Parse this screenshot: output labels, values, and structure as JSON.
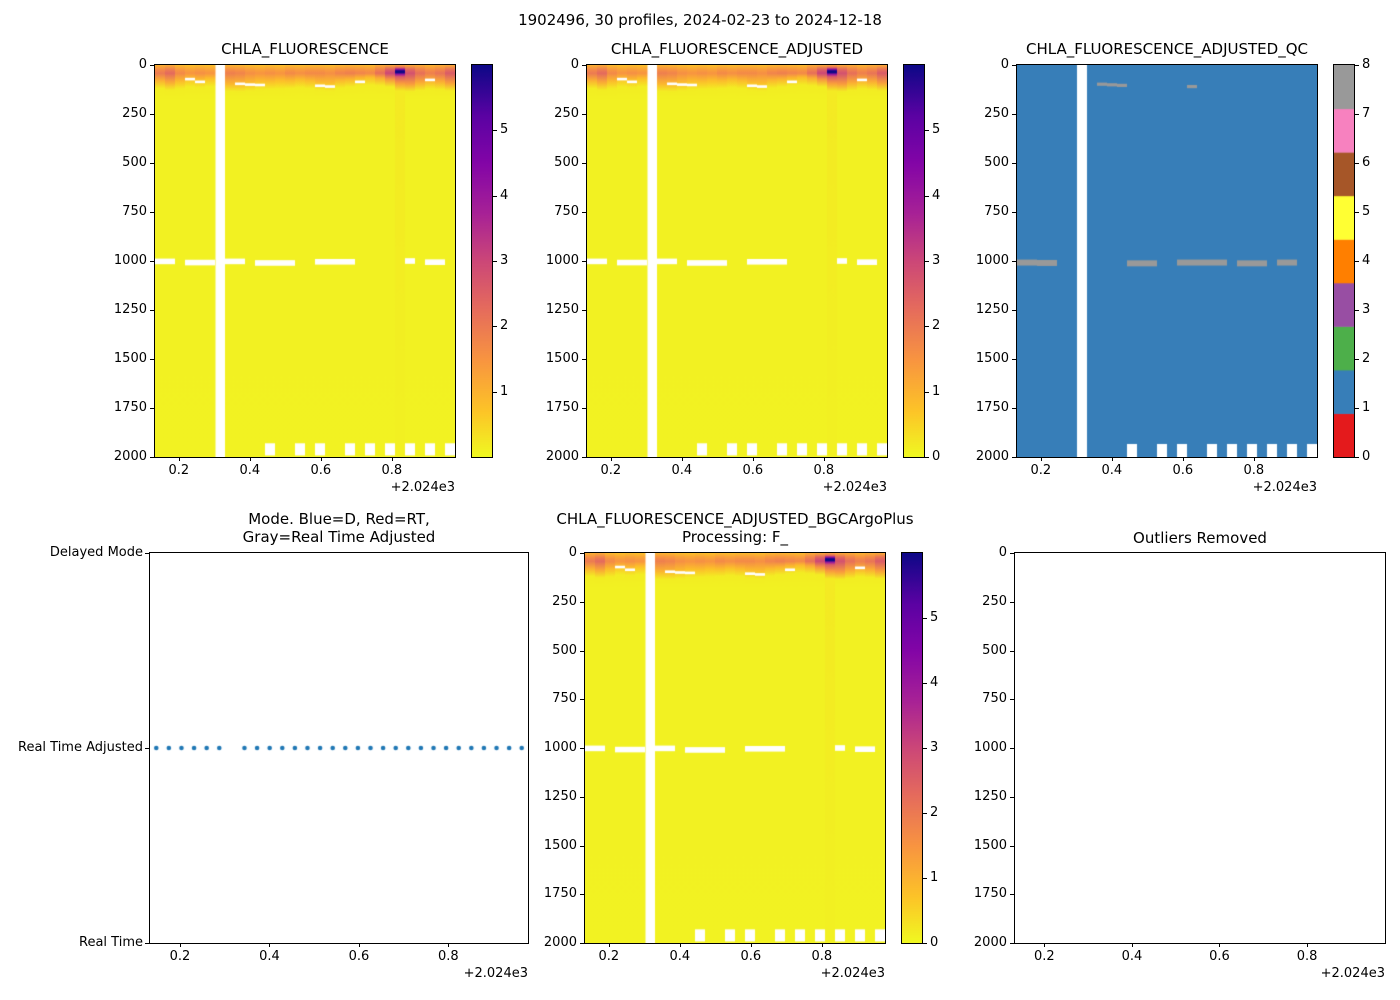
{
  "figure": {
    "title": "1902496, 30 profiles, 2024-02-23 to 2024-12-18"
  },
  "axes_common": {
    "x_tick_labels": [
      "0.2",
      "0.4",
      "0.6",
      "0.8"
    ],
    "x_tick_values": [
      2024.2,
      2024.4,
      2024.6,
      2024.8
    ],
    "x_offset_label": "+2.024e3",
    "xlim": [
      2024.133,
      2024.978
    ],
    "depth_ticks": [
      0,
      250,
      500,
      750,
      1000,
      1250,
      1500,
      1750,
      2000
    ],
    "depth_lim": [
      0,
      2000
    ]
  },
  "chart_data": [
    {
      "id": "chla_fluorescence",
      "type": "heatmap",
      "title": "CHLA_FLUORESCENCE",
      "colormap": "plasma_r",
      "vmin": 0,
      "vmax": 6,
      "colorbar_ticks": [
        1,
        2,
        3,
        4,
        5
      ],
      "data_ref": "profiles"
    },
    {
      "id": "chla_fluorescence_adjusted",
      "type": "heatmap",
      "title": "CHLA_FLUORESCENCE_ADJUSTED",
      "colormap": "plasma_r",
      "vmin": 0,
      "vmax": 6,
      "colorbar_ticks": [
        0,
        1,
        2,
        3,
        4,
        5
      ],
      "data_ref": "profiles"
    },
    {
      "id": "chla_fluorescence_adjusted_qc",
      "type": "heatmap",
      "title": "CHLA_FLUORESCENCE_ADJUSTED_QC",
      "colormap": "qc_discrete",
      "vmin": 0,
      "vmax": 8,
      "colorbar_ticks": [
        0,
        1,
        2,
        3,
        4,
        5,
        6,
        7,
        8
      ],
      "fill_value": 1,
      "data_ref": "qc"
    },
    {
      "id": "mode",
      "type": "scatter",
      "title_lines": [
        "Mode. Blue=D, Red=RT,",
        "Gray=Real Time Adjusted"
      ],
      "y_categories": [
        "Delayed Mode",
        "Real Time Adjusted",
        "Real Time"
      ],
      "dots_row": "Real Time Adjusted",
      "dot_color": "#1f77b4",
      "n_dots": 30,
      "missing_dot_index": 6
    },
    {
      "id": "bgc",
      "type": "heatmap",
      "title_lines": [
        "CHLA_FLUORESCENCE_ADJUSTED_BGCArgoPlus",
        "Processing: F_"
      ],
      "colormap": "plasma_r",
      "vmin": 0,
      "vmax": 6,
      "colorbar_ticks": [
        0,
        1,
        2,
        3,
        4,
        5
      ],
      "data_ref": "profiles"
    },
    {
      "id": "outliers",
      "type": "empty",
      "title": "Outliers Removed"
    }
  ],
  "profiles": {
    "n": 30,
    "x_first": 2024.147,
    "x_last": 2024.964,
    "missing_index": 6,
    "depth_range": [
      0,
      2000
    ],
    "background_value": 0.09,
    "band_bottom_m": [
      80,
      88,
      82,
      72,
      76,
      70,
      null,
      95,
      96,
      92,
      86,
      84,
      82,
      80,
      76,
      80,
      88,
      92,
      78,
      72,
      66,
      62,
      66,
      72,
      92,
      96,
      90,
      82,
      86,
      92
    ],
    "band_peak": [
      2.0,
      2.3,
      1.7,
      1.5,
      1.6,
      1.5,
      null,
      1.9,
      1.8,
      1.6,
      1.5,
      1.6,
      1.5,
      1.7,
      1.6,
      1.7,
      1.7,
      1.6,
      1.8,
      1.9,
      1.8,
      1.7,
      2.2,
      3.0,
      6.0,
      2.8,
      2.2,
      1.9,
      2.1,
      2.6
    ],
    "shallow_gaps": [
      [
        3,
        72
      ],
      [
        4,
        86
      ],
      [
        8,
        96
      ],
      [
        9,
        100
      ],
      [
        10,
        102
      ],
      [
        16,
        106
      ],
      [
        17,
        110
      ],
      [
        20,
        86
      ],
      [
        27,
        76
      ]
    ],
    "deep_gaps_1000m": [
      [
        0,
        1,
        1002
      ],
      [
        3,
        5,
        1008
      ],
      [
        7,
        8,
        1002
      ],
      [
        10,
        13,
        1010
      ],
      [
        16,
        19,
        1004
      ],
      [
        25,
        25,
        1000
      ],
      [
        27,
        28,
        1006
      ]
    ],
    "bottom_notch_indices": [
      11,
      14,
      16,
      19,
      21,
      23,
      25,
      27,
      29
    ],
    "bottom_notch_depth_range": [
      1930,
      1992
    ]
  },
  "qc": {
    "fill_value": 1,
    "gray_value": 8,
    "shallow_marks": [
      [
        8,
        98
      ],
      [
        9,
        101
      ],
      [
        10,
        104
      ],
      [
        17,
        110
      ]
    ],
    "deep_marks": [
      [
        0,
        1,
        1008
      ],
      [
        2,
        3,
        1010
      ],
      [
        11,
        13,
        1012
      ],
      [
        16,
        20,
        1008
      ],
      [
        22,
        24,
        1012
      ],
      [
        26,
        27,
        1008
      ]
    ],
    "bottom_notch_depth_range": [
      1935,
      2000
    ]
  },
  "colors": {
    "plasma_stops": [
      [
        0,
        "#0d0887"
      ],
      [
        0.13,
        "#5b02a3"
      ],
      [
        0.25,
        "#8305a7"
      ],
      [
        0.38,
        "#a82296"
      ],
      [
        0.5,
        "#cc4778"
      ],
      [
        0.62,
        "#e56b5d"
      ],
      [
        0.75,
        "#f89441"
      ],
      [
        0.88,
        "#fdc328"
      ],
      [
        1,
        "#f0f921"
      ]
    ],
    "qc_palette": [
      "#e41a1c",
      "#377eb8",
      "#4daf4a",
      "#984ea3",
      "#ff7f00",
      "#ffff33",
      "#a65628",
      "#f781bf",
      "#999999"
    ],
    "axis_color": "#000000",
    "background": "#ffffff"
  }
}
